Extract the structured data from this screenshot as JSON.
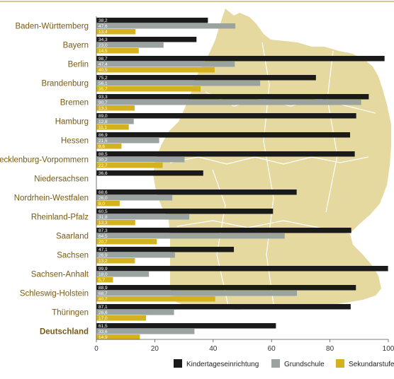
{
  "chart_data": {
    "type": "bar",
    "orientation": "horizontal",
    "title": "",
    "xlabel": "",
    "ylabel": "",
    "xlim": [
      0,
      100
    ],
    "xticks": [
      "0",
      "20",
      "40",
      "60",
      "80",
      "100"
    ],
    "grid": false,
    "legend_position": "bottom-right",
    "categories": [
      "Baden-Württemberg",
      "Bayern",
      "Berlin",
      "Brandenburg",
      "Bremen",
      "Hamburg",
      "Hessen",
      "Mecklenburg-Vorpommern",
      "Niedersachsen",
      "Nordrhein-Westfalen",
      "Rheinland-Pfalz",
      "Saarland",
      "Sachsen",
      "Sachsen-Anhalt",
      "Schleswig-Holstein",
      "Thüringen",
      "Deutschland"
    ],
    "highlight_category": "Deutschland",
    "series": [
      {
        "name": "Kindertageseinrichtung",
        "color": "#1a1a1a",
        "values": [
          38.2,
          34.3,
          98.7,
          75.2,
          93.3,
          89.0,
          86.9,
          88.5,
          36.6,
          68.6,
          60.5,
          87.3,
          47.1,
          99.9,
          88.9,
          87.1,
          61.5
        ],
        "labels": [
          "38,2",
          "34,3",
          "98,7",
          "75,2",
          "93,3",
          "89,0",
          "86,9",
          "88,5",
          "36,6",
          "68,6",
          "60,5",
          "87,3",
          "47,1",
          "99,9",
          "88,9",
          "87,1",
          "61,5"
        ]
      },
      {
        "name": "Grundschule",
        "color": "#9aa3a0",
        "values": [
          47.6,
          23.0,
          47.4,
          56.1,
          90.7,
          12.8,
          21.5,
          30.2,
          null,
          26.0,
          31.8,
          64.5,
          26.9,
          18.0,
          68.7,
          26.6,
          33.6
        ],
        "labels": [
          "47,6",
          "23,0",
          "47,4",
          "56,1",
          "90,7",
          "12,8",
          "21,5",
          "30,2",
          "",
          "26,0",
          "31,8",
          "64,5",
          "26,9",
          "18,0",
          "68,7",
          "26,6",
          "33,6"
        ]
      },
      {
        "name": "Sekundarstufe I",
        "color": "#d4b21e",
        "values": [
          13.4,
          14.5,
          40.5,
          35.7,
          13.1,
          11.1,
          8.6,
          22.7,
          null,
          8.0,
          13.3,
          20.7,
          13.2,
          5.7,
          40.7,
          17.0,
          14.9
        ],
        "labels": [
          "13,4",
          "14,5",
          "40,5",
          "35,7",
          "13,1",
          "11,1",
          "8,6",
          "22,7",
          "",
          "8,0",
          "13,3",
          "20,7",
          "13,2",
          "5,7",
          "40,7",
          "17,0",
          "14,9"
        ]
      }
    ]
  }
}
